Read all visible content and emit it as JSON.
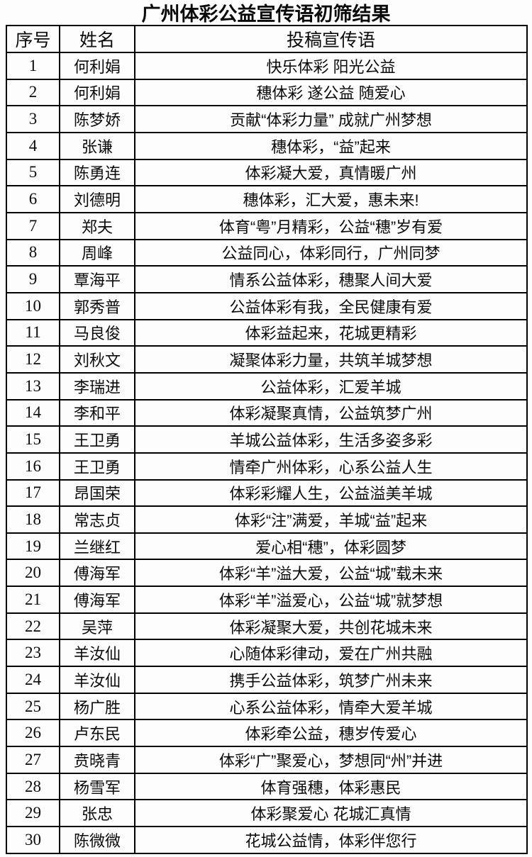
{
  "title": "广州体彩公益宣传语初筛结果",
  "headers": {
    "no": "序号",
    "name": "姓名",
    "slogan": "投稿宣传语"
  },
  "rows": [
    {
      "no": "1",
      "name": "何利娟",
      "slogan": "快乐体彩 阳光公益"
    },
    {
      "no": "2",
      "name": "何利娟",
      "slogan": "穗体彩 遂公益 随爱心"
    },
    {
      "no": "3",
      "name": "陈梦娇",
      "slogan": "贡献“体彩力量” 成就广州梦想"
    },
    {
      "no": "4",
      "name": "张谦",
      "slogan": "穗体彩，“益”起来"
    },
    {
      "no": "5",
      "name": "陈勇连",
      "slogan": "体彩凝大爱，真情暖广州"
    },
    {
      "no": "6",
      "name": "刘德明",
      "slogan": "穗体彩，汇大爱，惠未来!"
    },
    {
      "no": "7",
      "name": "郑夫",
      "slogan": "体育“粤”月精彩，公益“穗”岁有爱"
    },
    {
      "no": "8",
      "name": "周峰",
      "slogan": "公益同心，体彩同行，广州同梦"
    },
    {
      "no": "9",
      "name": "覃海平",
      "slogan": "情系公益体彩，穗聚人间大爱"
    },
    {
      "no": "10",
      "name": "郭秀普",
      "slogan": "公益体彩有我，全民健康有爱"
    },
    {
      "no": "11",
      "name": "马良俊",
      "slogan": "体彩益起来，花城更精彩"
    },
    {
      "no": "12",
      "name": "刘秋文",
      "slogan": "凝聚体彩力量，共筑羊城梦想"
    },
    {
      "no": "13",
      "name": "李瑞进",
      "slogan": "公益体彩，汇爱羊城"
    },
    {
      "no": "14",
      "name": "李和平",
      "slogan": "体彩凝聚真情，公益筑梦广州"
    },
    {
      "no": "15",
      "name": "王卫勇",
      "slogan": "羊城公益体彩，生活多姿多彩"
    },
    {
      "no": "16",
      "name": "王卫勇",
      "slogan": "情牵广州体彩，心系公益人生"
    },
    {
      "no": "17",
      "name": "昂国荣",
      "slogan": "体彩彩耀人生，公益溢美羊城"
    },
    {
      "no": "18",
      "name": "常志贞",
      "slogan": "体彩“注”满爱，羊城“益”起来"
    },
    {
      "no": "19",
      "name": "兰继红",
      "slogan": "爱心相“穗”，体彩圆梦"
    },
    {
      "no": "20",
      "name": "傅海军",
      "slogan": "体彩“羊”溢大爱，公益“城”载未来"
    },
    {
      "no": "21",
      "name": "傅海军",
      "slogan": "体彩“羊”溢爱心，公益“城”就梦想"
    },
    {
      "no": "22",
      "name": "吴萍",
      "slogan": "体彩凝聚大爱，共创花城未来"
    },
    {
      "no": "23",
      "name": "羊汝仙",
      "slogan": "心随体彩律动，爱在广州共融"
    },
    {
      "no": "24",
      "name": "羊汝仙",
      "slogan": "携手公益体彩，筑梦广州未来"
    },
    {
      "no": "25",
      "name": "杨广胜",
      "slogan": "心系公益体彩，情牵大爱羊城"
    },
    {
      "no": "26",
      "name": "卢东民",
      "slogan": "体彩牵公益，穗岁传爱心"
    },
    {
      "no": "27",
      "name": "贲晓青",
      "slogan": "体彩“广”聚爱心，梦想同“州”并进"
    },
    {
      "no": "28",
      "name": "杨雪军",
      "slogan": "体育强穗，体彩惠民"
    },
    {
      "no": "29",
      "name": "张忠",
      "slogan": "体彩聚爱心 花城汇真情"
    },
    {
      "no": "30",
      "name": "陈微微",
      "slogan": "花城公益情，体彩伴您行"
    }
  ]
}
